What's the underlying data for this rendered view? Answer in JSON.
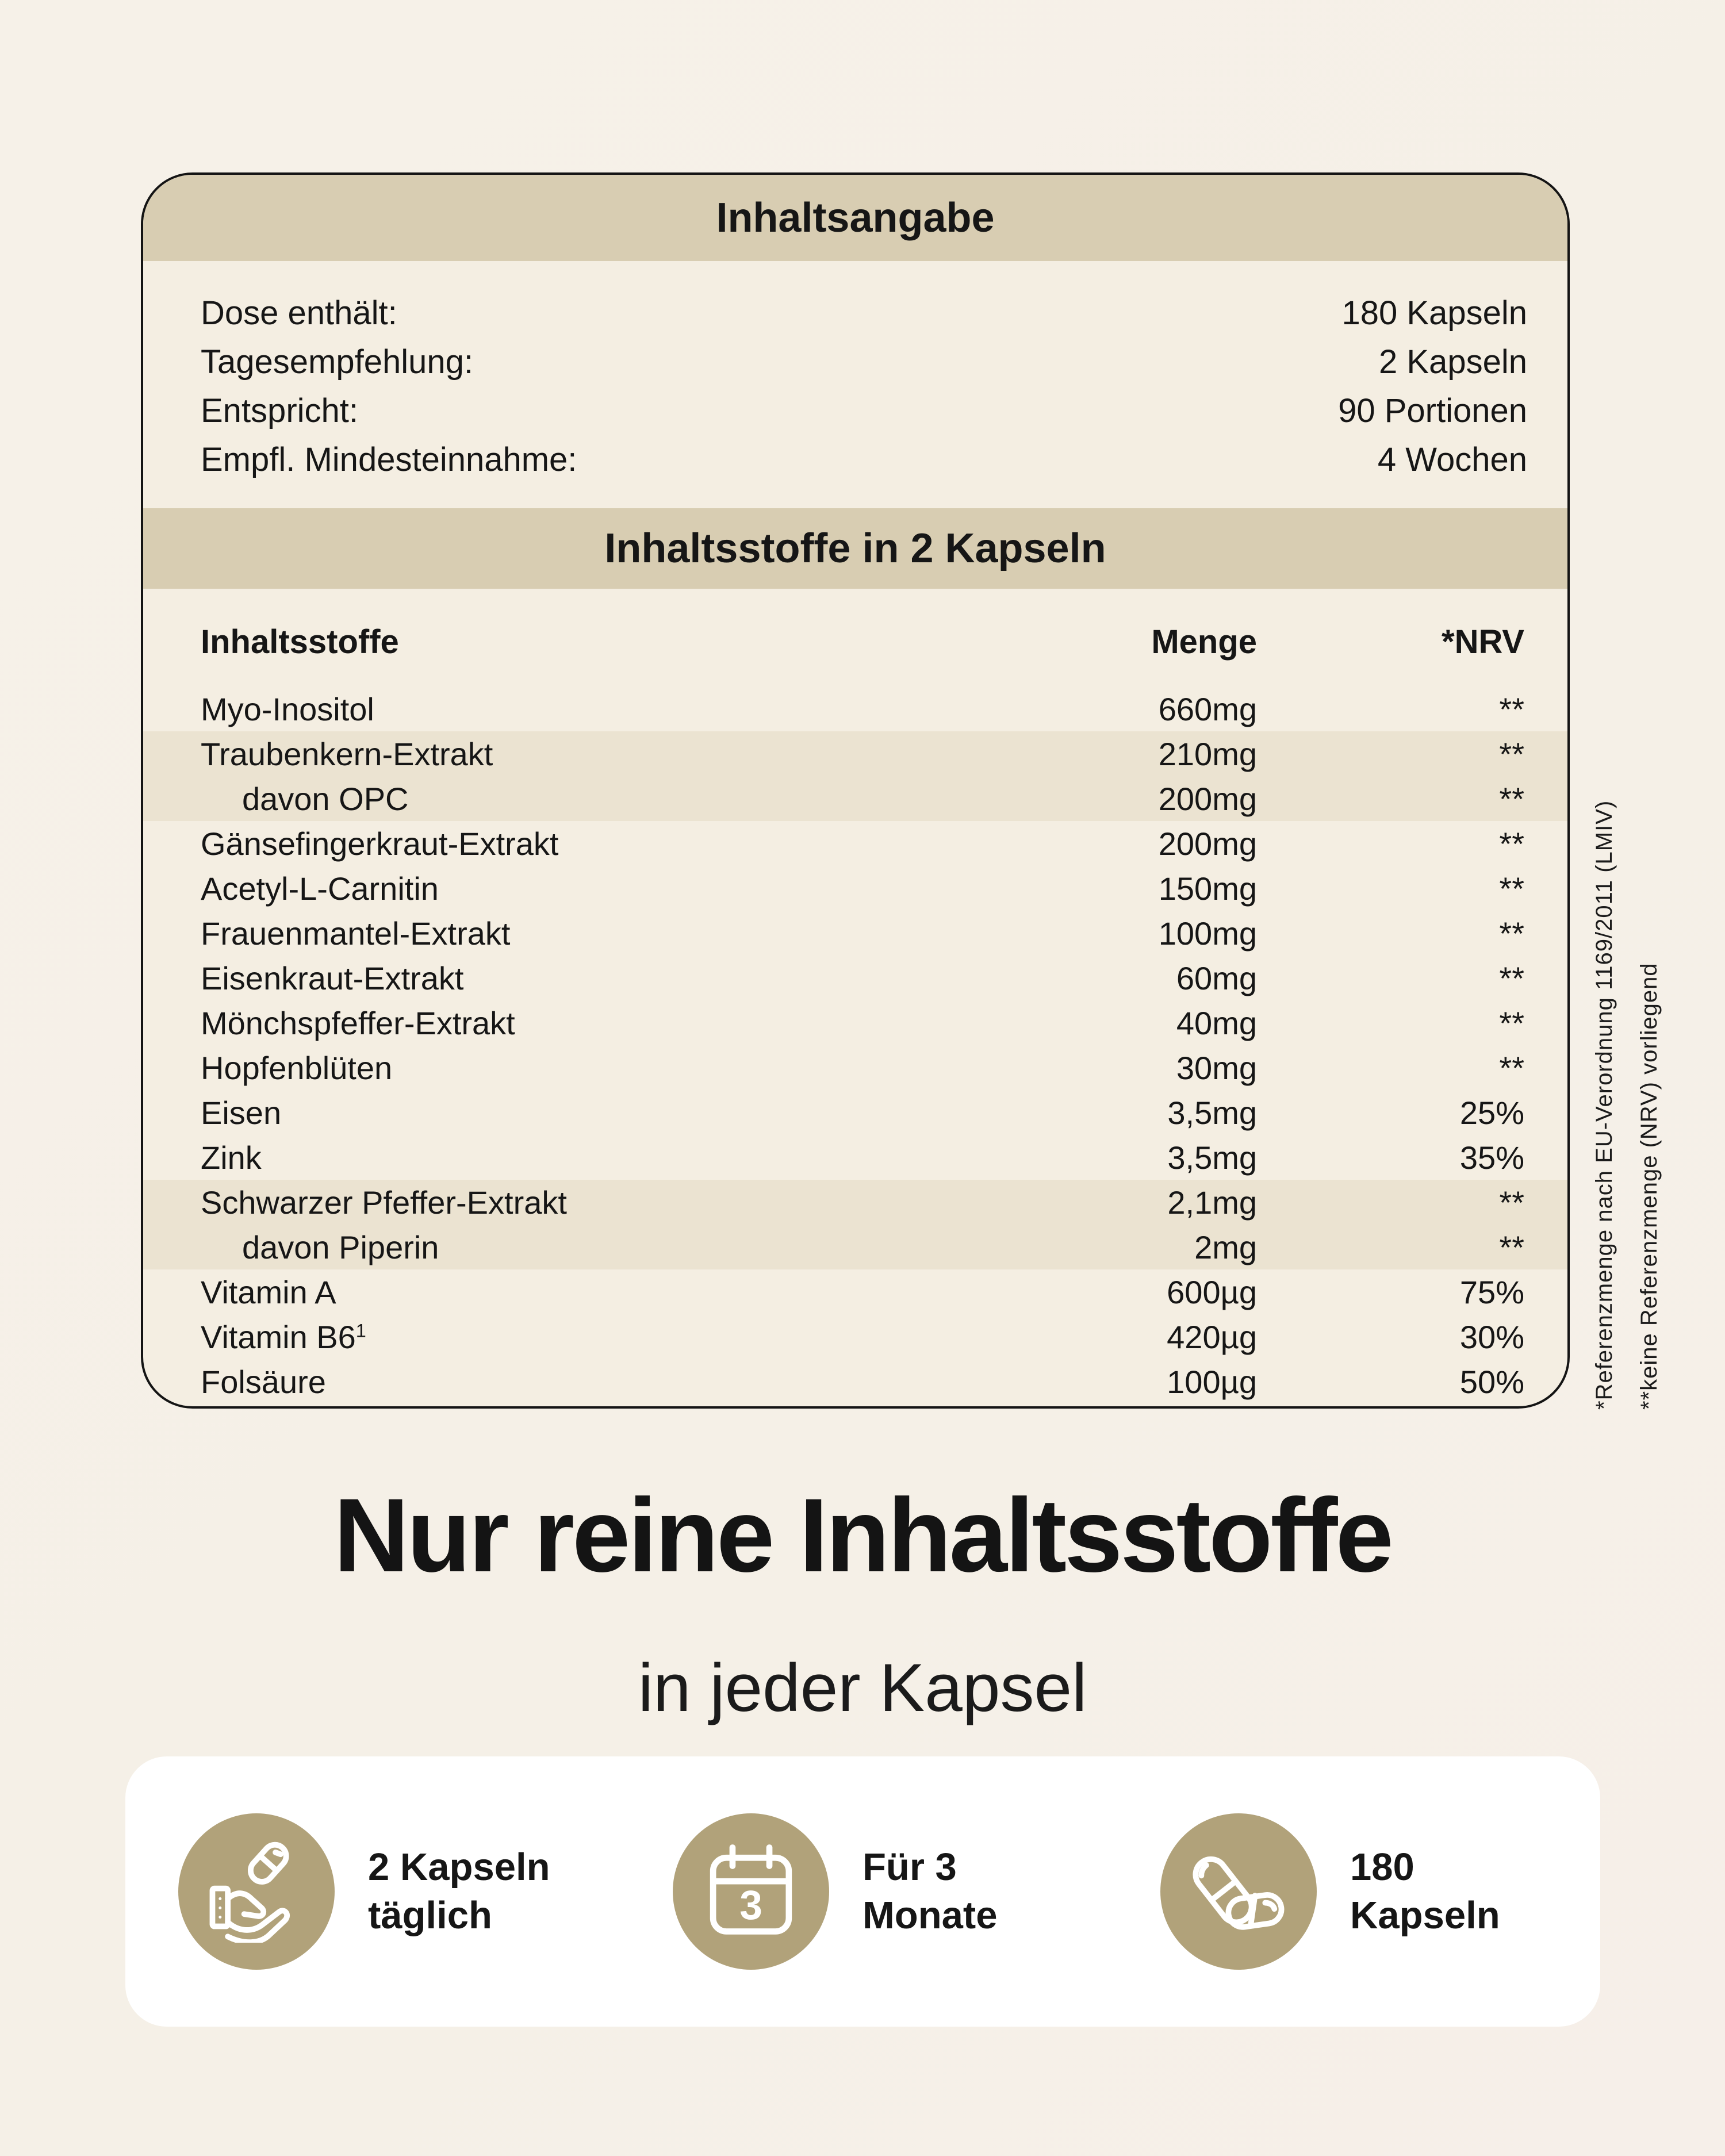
{
  "colors": {
    "page_bg": "#f6f1e8",
    "card_bg": "#f4eee2",
    "band": "#d8cdb2",
    "row_shade": "#ebe3d1",
    "ink": "#161616",
    "icon_circle": "#b1a27a",
    "bar_bg": "#ffffff"
  },
  "panel": {
    "title": "Inhaltsangabe",
    "info_rows": [
      {
        "label": "Dose enthält:",
        "value": "180 Kapseln"
      },
      {
        "label": "Tagesempfehlung:",
        "value": "2 Kapseln"
      },
      {
        "label": "Entspricht:",
        "value": "90 Portionen"
      },
      {
        "label": "Empfl. Mindesteinnahme:",
        "value": "4 Wochen"
      }
    ],
    "subtitle": "Inhaltsstoffe in 2 Kapseln",
    "table": {
      "headers": {
        "name": "Inhaltsstoffe",
        "amount": "Menge",
        "nrv": "*NRV"
      },
      "rows": [
        {
          "name": "Myo-Inositol",
          "amount": "660mg",
          "nrv": "**",
          "indent": false,
          "shaded": false
        },
        {
          "name": "Traubenkern-Extrakt",
          "amount": "210mg",
          "nrv": "**",
          "indent": false,
          "shaded": true
        },
        {
          "name": "davon OPC",
          "amount": "200mg",
          "nrv": "**",
          "indent": true,
          "shaded": true
        },
        {
          "name": "Gänsefingerkraut-Extrakt",
          "amount": "200mg",
          "nrv": "**",
          "indent": false,
          "shaded": false
        },
        {
          "name": "Acetyl-L-Carnitin",
          "amount": "150mg",
          "nrv": "**",
          "indent": false,
          "shaded": false
        },
        {
          "name": "Frauenmantel-Extrakt",
          "amount": "100mg",
          "nrv": "**",
          "indent": false,
          "shaded": false
        },
        {
          "name": "Eisenkraut-Extrakt",
          "amount": "60mg",
          "nrv": "**",
          "indent": false,
          "shaded": false
        },
        {
          "name": "Mönchspfeffer-Extrakt",
          "amount": "40mg",
          "nrv": "**",
          "indent": false,
          "shaded": false
        },
        {
          "name": "Hopfenblüten",
          "amount": "30mg",
          "nrv": "**",
          "indent": false,
          "shaded": false
        },
        {
          "name": "Eisen",
          "amount": "3,5mg",
          "nrv": "25%",
          "indent": false,
          "shaded": false
        },
        {
          "name": "Zink",
          "amount": "3,5mg",
          "nrv": "35%",
          "indent": false,
          "shaded": false
        },
        {
          "name": "Schwarzer Pfeffer-Extrakt",
          "amount": "2,1mg",
          "nrv": "**",
          "indent": false,
          "shaded": true
        },
        {
          "name": "davon Piperin",
          "amount": "2mg",
          "nrv": "**",
          "indent": true,
          "shaded": true
        },
        {
          "name": "Vitamin A",
          "amount": "600µg",
          "nrv": "75%",
          "indent": false,
          "shaded": false
        },
        {
          "name": "Vitamin B6",
          "sup": "1",
          "amount": "420µg",
          "nrv": "30%",
          "indent": false,
          "shaded": false
        },
        {
          "name": "Folsäure",
          "amount": "100µg",
          "nrv": "50%",
          "indent": false,
          "shaded": false
        }
      ]
    },
    "footnotes": [
      "*Referenzmenge nach EU-Verordnung 1169/2011 (LMIV)",
      "**keine Referenzmenge (NRV) vorliegend"
    ]
  },
  "headline": {
    "title": "Nur reine Inhaltsstoffe",
    "subtitle": "in jeder Kapsel"
  },
  "benefits": {
    "items": [
      {
        "icon": "hand-capsule-icon",
        "line1": "2 Kapseln",
        "line2": "täglich"
      },
      {
        "icon": "calendar-icon",
        "calendar_number": "3",
        "line1": "Für 3",
        "line2": "Monate"
      },
      {
        "icon": "capsules-icon",
        "line1": "180",
        "line2": "Kapseln"
      }
    ]
  }
}
